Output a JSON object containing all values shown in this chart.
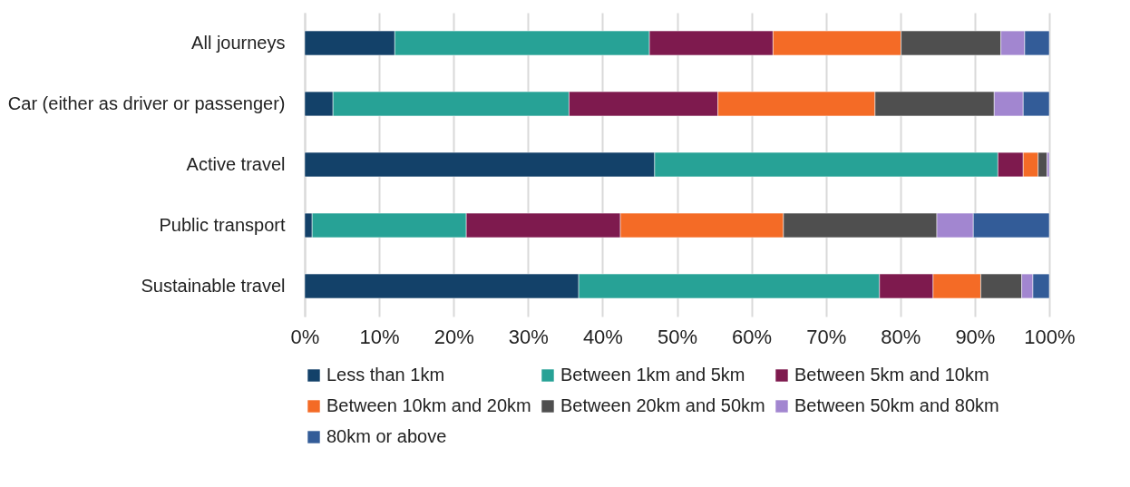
{
  "chart_data": {
    "type": "bar",
    "orientation": "horizontal",
    "stacked": true,
    "categories": [
      "All journeys",
      "Car (either as driver or passenger)",
      "Active travel",
      "Public transport",
      "Sustainable travel"
    ],
    "series": [
      {
        "name": "Less than 1km",
        "color": "#134169",
        "values": [
          12.1,
          3.8,
          47.0,
          1.0,
          36.8
        ]
      },
      {
        "name": "Between 1km and 5km",
        "color": "#27a296",
        "values": [
          34.2,
          31.7,
          46.1,
          20.7,
          40.4
        ]
      },
      {
        "name": "Between 5km and 10km",
        "color": "#7e1a4e",
        "values": [
          16.6,
          20.0,
          3.4,
          20.7,
          7.2
        ]
      },
      {
        "name": "Between 10km and 20km",
        "color": "#f46b26",
        "values": [
          17.2,
          21.1,
          2.0,
          21.9,
          6.4
        ]
      },
      {
        "name": "Between 20km and 50km",
        "color": "#4f4f4f",
        "values": [
          13.4,
          16.0,
          1.2,
          20.6,
          5.5
        ]
      },
      {
        "name": "Between 50km and 80km",
        "color": "#a286d0",
        "values": [
          3.2,
          3.9,
          0.3,
          4.9,
          1.5
        ]
      },
      {
        "name": "80km or above",
        "color": "#335c98",
        "values": [
          3.3,
          3.5,
          null,
          10.2,
          2.2
        ]
      }
    ],
    "xlim": [
      0,
      100
    ],
    "xticks": [
      {
        "value": 0,
        "label": "0%"
      },
      {
        "value": 10,
        "label": "10%"
      },
      {
        "value": 20,
        "label": "20%"
      },
      {
        "value": 30,
        "label": "30%"
      },
      {
        "value": 40,
        "label": "40%"
      },
      {
        "value": 50,
        "label": "50%"
      },
      {
        "value": 60,
        "label": "60%"
      },
      {
        "value": 70,
        "label": "70%"
      },
      {
        "value": 80,
        "label": "80%"
      },
      {
        "value": 90,
        "label": "90%"
      },
      {
        "value": 100,
        "label": "100%"
      }
    ],
    "grid": "x",
    "legend": "bottom"
  }
}
